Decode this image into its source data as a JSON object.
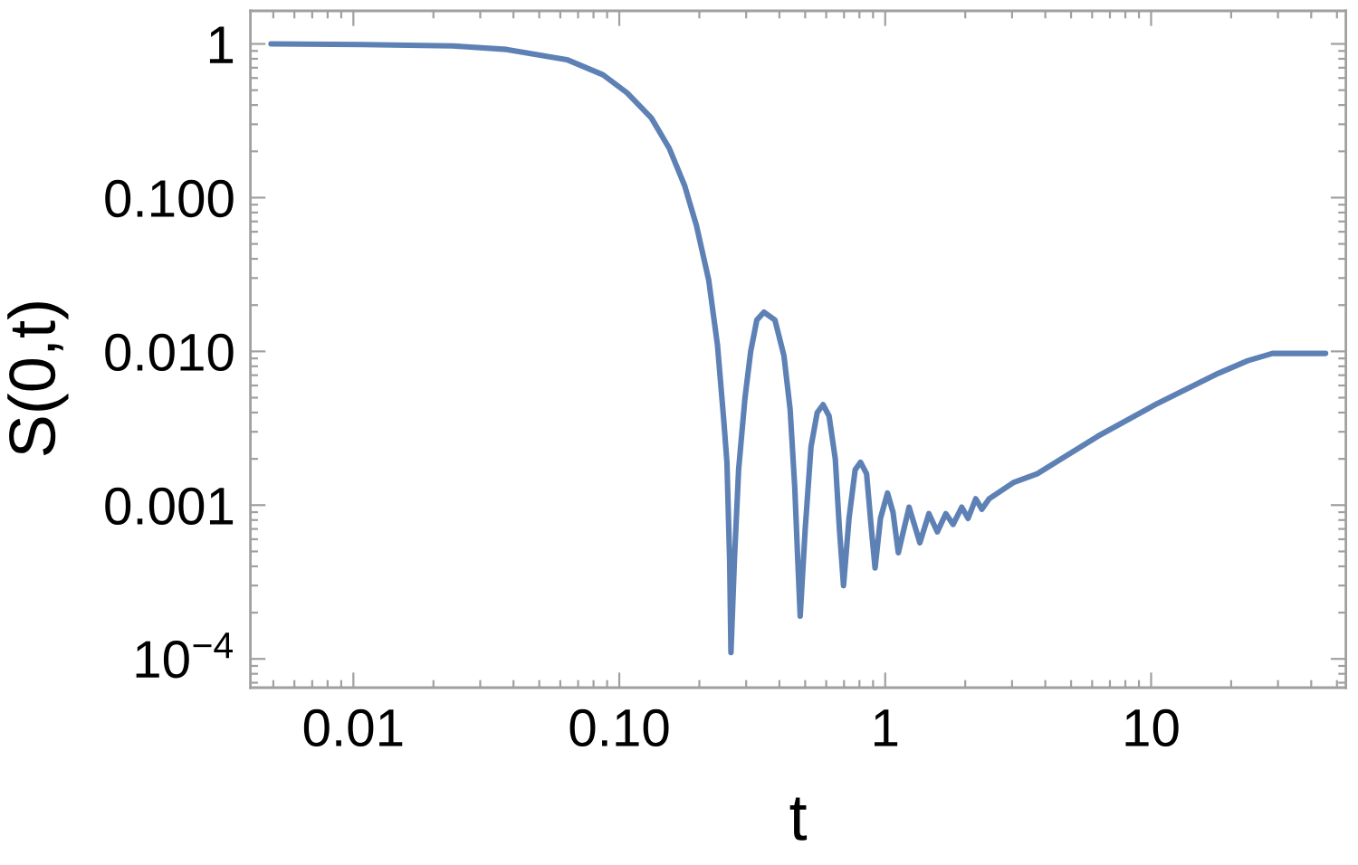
{
  "chart_data": {
    "type": "line",
    "xlabel": "t",
    "ylabel": "S(0,t)",
    "log": "xy",
    "xlim": [
      0.0041,
      54
    ],
    "ylim": [
      6.5e-05,
      1.64
    ],
    "xticks": [
      0.01,
      {
        "value": 0.1,
        "label": "0.10"
      },
      1,
      10
    ],
    "yticks": [
      {
        "value": 0.0001,
        "label": "10$^{−4}$"
      },
      0.001,
      {
        "value": 0.01,
        "label": "0.010"
      },
      {
        "value": 0.1,
        "label": "0.100"
      },
      1
    ],
    "series": [
      {
        "color": "#5e81b5",
        "x": [
          0.0049,
          0.0108,
          0.0236,
          0.0377,
          0.0635,
          0.0868,
          0.107,
          0.132,
          0.154,
          0.176,
          0.195,
          0.217,
          0.234,
          0.247,
          0.254,
          0.26,
          0.263,
          0.271,
          0.281,
          0.297,
          0.312,
          0.329,
          0.35,
          0.385,
          0.416,
          0.439,
          0.457,
          0.469,
          0.479,
          0.5,
          0.526,
          0.555,
          0.584,
          0.615,
          0.649,
          0.673,
          0.697,
          0.731,
          0.771,
          0.808,
          0.851,
          0.888,
          0.916,
          0.96,
          1.02,
          1.07,
          1.12,
          1.23,
          1.35,
          1.46,
          1.57,
          1.69,
          1.8,
          1.94,
          2.05,
          2.19,
          2.31,
          2.46,
          3.03,
          3.73,
          6.29,
          10.6,
          17.9,
          23.1,
          28.6,
          45.3
        ],
        "values": [
          1.0,
          0.99,
          0.97,
          0.92,
          0.79,
          0.63,
          0.48,
          0.33,
          0.21,
          0.12,
          0.066,
          0.029,
          0.011,
          0.0036,
          0.0019,
          0.00044,
          0.00011,
          0.00044,
          0.0017,
          0.005,
          0.01,
          0.016,
          0.018,
          0.016,
          0.0094,
          0.0042,
          0.0013,
          0.00044,
          0.00019,
          0.00069,
          0.0024,
          0.004,
          0.0045,
          0.0038,
          0.002,
          0.00069,
          0.0003,
          0.00082,
          0.0017,
          0.0019,
          0.0016,
          0.00069,
          0.00039,
          0.00082,
          0.0012,
          0.0009,
          0.00049,
          0.00097,
          0.00057,
          0.00088,
          0.00067,
          0.00088,
          0.00075,
          0.00097,
          0.00082,
          0.0011,
          0.00094,
          0.0011,
          0.0014,
          0.0016,
          0.0028,
          0.0046,
          0.0072,
          0.0087,
          0.0097,
          0.0097
        ]
      }
    ]
  }
}
